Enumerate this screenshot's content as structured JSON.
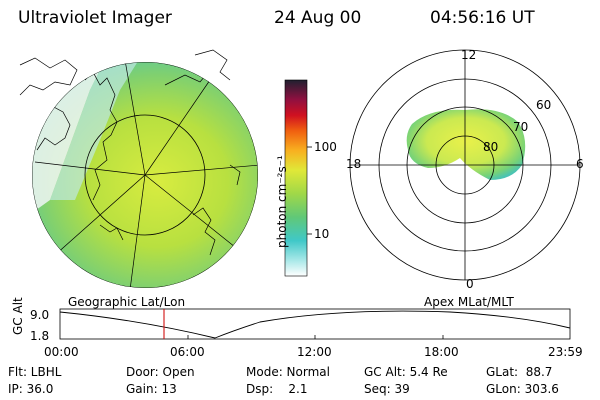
{
  "header": {
    "title": "Ultraviolet Imager",
    "date": "24 Aug 00",
    "time": "04:56:16 UT"
  },
  "colorbar": {
    "unit_label": "photon cm⁻²s⁻¹",
    "ticks": [
      "100",
      "10"
    ]
  },
  "left_panel": {
    "caption": "Geographic Lat/Lon"
  },
  "right_panel": {
    "caption": "Apex MLat/MLT",
    "mlt_labels": [
      "12",
      "18",
      "6",
      "0"
    ],
    "mlat_labels": [
      "60",
      "70",
      "80"
    ]
  },
  "timeline": {
    "ylabel": "GC Alt",
    "yticks": [
      "9.0",
      "1.8"
    ],
    "xticks": [
      "00:00",
      "06:00",
      "12:00",
      "18:00",
      "23:59"
    ]
  },
  "info": {
    "flt": "Flt: LBHL",
    "ip": "IP: 36.0",
    "door": "Door: Open",
    "gain": "Gain: 13",
    "mode": "Mode: Normal",
    "dsp": "Dsp:    2.1",
    "gcalt": "GC Alt: 5.4 Re",
    "seq": "Seq: 39",
    "glat": "GLat:  88.7",
    "glon": "GLon: 303.6"
  }
}
